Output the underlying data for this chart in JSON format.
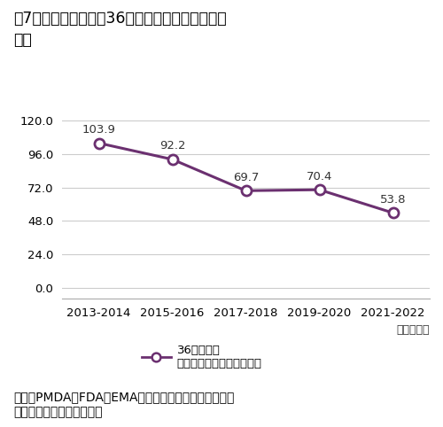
{
  "title_line1": "図7　ドラッグ・ラグ36ヵ月以上の品目の中央値",
  "title_line2": "推移",
  "categories": [
    "2013-2014",
    "2015-2016",
    "2017-2018",
    "2019-2020",
    "2021-2022"
  ],
  "values": [
    103.9,
    92.2,
    69.7,
    70.4,
    53.8
  ],
  "line_color": "#6B3070",
  "marker_face": "#ffffff",
  "marker_edge": "#6B3070",
  "xlabel_note": "日本承認年",
  "yticks": [
    0.0,
    24.0,
    48.0,
    72.0,
    96.0,
    120.0
  ],
  "ylim": [
    -8,
    130
  ],
  "legend_label_line1": "36ヵ月以上",
  "legend_label_line2": "ドラッグ・ラグ（中央値）",
  "source_text1": "出所：PMDA、FDA、EMAの各公開情報をもとに医薬産",
  "source_text2": "　　業政策研究所にて作成",
  "bg_color": "#ffffff",
  "grid_color": "#cccccc",
  "title_fontsize": 12.5,
  "axis_fontsize": 9.5,
  "annotation_fontsize": 9.5,
  "legend_fontsize": 9.5,
  "source_fontsize": 10
}
